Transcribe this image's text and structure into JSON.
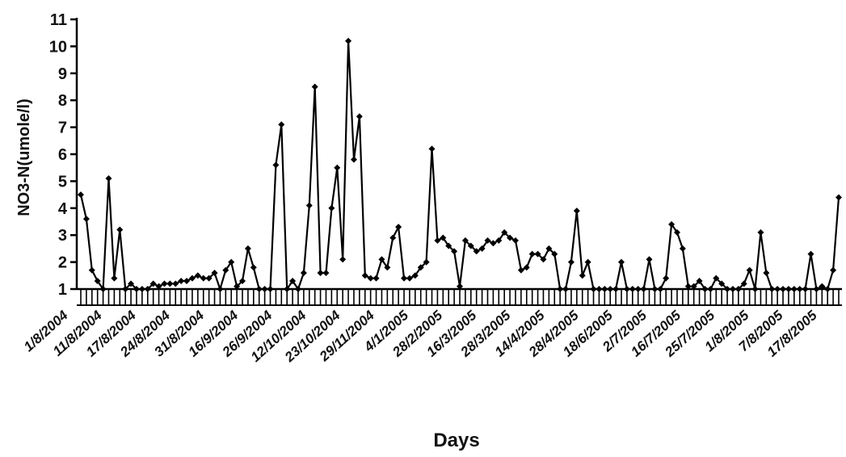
{
  "chart_data": {
    "type": "line",
    "title": "",
    "xlabel": "Days",
    "ylabel": "NO3-N(umole/l)",
    "ylim": [
      1,
      11
    ],
    "yticks": [
      1,
      2,
      3,
      4,
      5,
      6,
      7,
      8,
      9,
      10,
      11
    ],
    "grid": false,
    "legend": "none",
    "line_color": "#000000",
    "marker": "diamond",
    "x_tick_labels": [
      "1/8/2004",
      "11/8/2004",
      "17/8/2004",
      "24/8/2004",
      "31/8/2004",
      "16/9/2004",
      "26/9/2004",
      "12/10/2004",
      "23/10/2004",
      "29/11/2004",
      "4/1/2005",
      "28/2/2005",
      "16/3/2005",
      "28/3/2005",
      "14/4/2005",
      "28/4/2005",
      "18/6/2005",
      "2/7/2005",
      "16/7/2005",
      "25/7/2005",
      "1/8/2005",
      "7/8/2005",
      "17/8/2005"
    ],
    "values": [
      4.5,
      3.6,
      1.7,
      1.3,
      0.9,
      5.1,
      1.4,
      3.2,
      1.0,
      1.2,
      0.7,
      0.6,
      0.7,
      1.2,
      1.1,
      1.2,
      1.2,
      1.2,
      1.3,
      1.3,
      1.4,
      1.5,
      1.4,
      1.4,
      1.6,
      1.0,
      1.7,
      2.0,
      1.1,
      1.3,
      2.5,
      1.8,
      1.0,
      1.0,
      1.0,
      5.6,
      7.1,
      1.0,
      1.3,
      1.0,
      1.6,
      4.1,
      8.5,
      1.6,
      1.6,
      4.0,
      5.5,
      2.1,
      10.2,
      5.8,
      7.4,
      1.5,
      1.4,
      1.4,
      2.1,
      1.8,
      2.9,
      3.3,
      1.4,
      1.4,
      1.5,
      1.8,
      2.0,
      6.2,
      2.8,
      2.9,
      2.6,
      2.4,
      1.1,
      2.8,
      2.6,
      2.4,
      2.5,
      2.8,
      2.7,
      2.8,
      3.1,
      2.9,
      2.8,
      1.7,
      1.8,
      2.3,
      2.3,
      2.1,
      2.5,
      2.3,
      1.0,
      1.0,
      2.0,
      3.9,
      1.5,
      2.0,
      0.8,
      0.8,
      1.0,
      0.7,
      0.9,
      2.0,
      0.8,
      0.8,
      0.9,
      0.7,
      2.1,
      0.6,
      0.9,
      1.4,
      3.4,
      3.1,
      2.5,
      1.1,
      1.1,
      1.3,
      0.9,
      0.6,
      1.4,
      1.2,
      1.0,
      0.9,
      0.8,
      1.2,
      1.7,
      0.9,
      3.1,
      1.6,
      0.6,
      0.8,
      0.6,
      0.6,
      0.5,
      1.0,
      0.7,
      2.3,
      0.6,
      1.1,
      0.6,
      1.7,
      4.4
    ]
  }
}
